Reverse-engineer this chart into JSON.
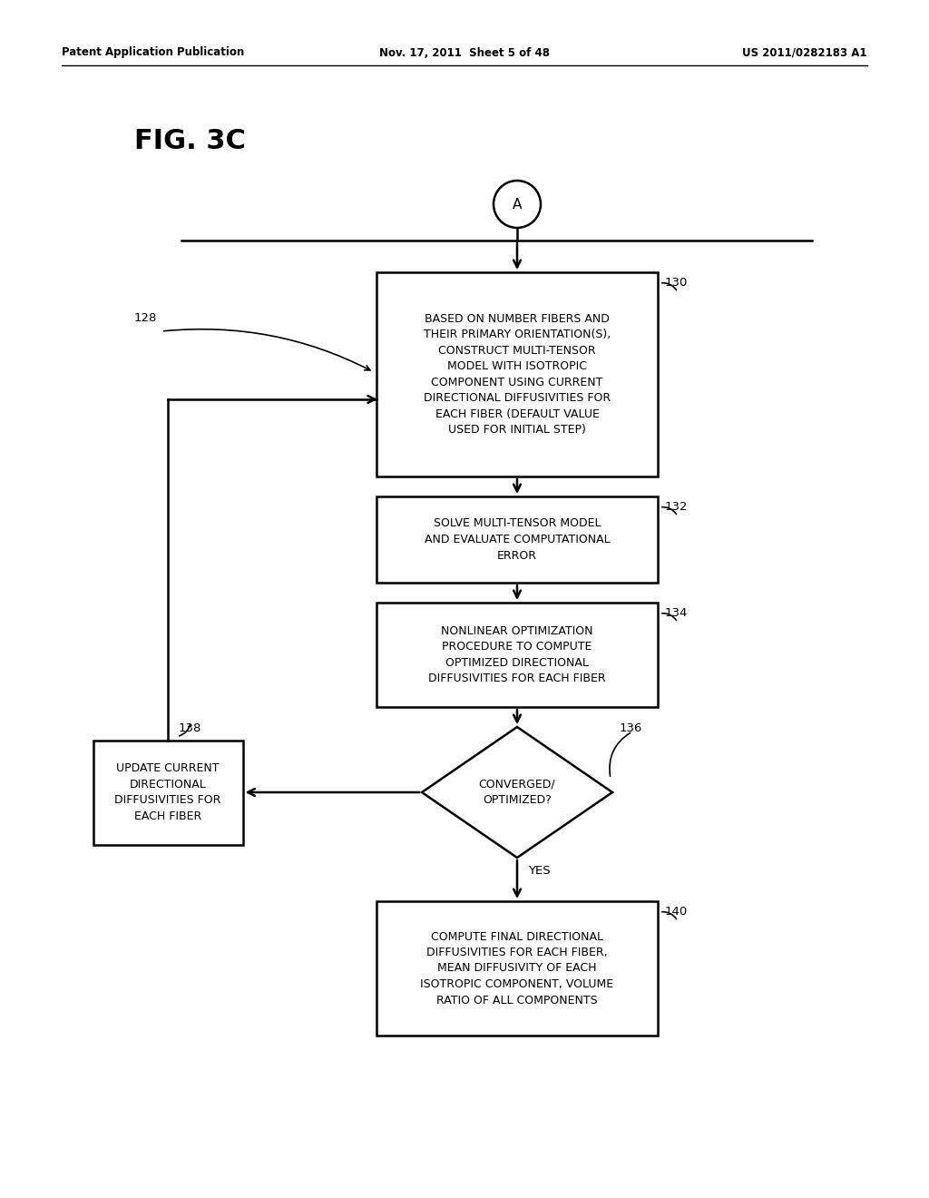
{
  "bg_color": "#ffffff",
  "header_left": "Patent Application Publication",
  "header_center": "Nov. 17, 2011  Sheet 5 of 48",
  "header_right": "US 2011/0282183 A1",
  "fig_label": "FIG. 3C",
  "circle_label": "A",
  "label_128": "128",
  "label_130": "130",
  "label_132": "132",
  "label_134": "134",
  "label_136": "136",
  "label_138": "138",
  "label_140": "140",
  "box130_text": "BASED ON NUMBER FIBERS AND\nTHEIR PRIMARY ORIENTATION(S),\nCONSTRUCT MULTI-TENSOR\nMODEL WITH ISOTROPIC\nCOMPONENT USING CURRENT\nDIRECTIONAL DIFFUSIVITIES FOR\nEACH FIBER (DEFAULT VALUE\nUSED FOR INITIAL STEP)",
  "box132_text": "SOLVE MULTI-TENSOR MODEL\nAND EVALUATE COMPUTATIONAL\nERROR",
  "box134_text": "NONLINEAR OPTIMIZATION\nPROCEDURE TO COMPUTE\nOPTIMIZED DIRECTIONAL\nDIFFUSIVITIES FOR EACH FIBER",
  "diamond136_text": "CONVERGED/\nOPTIMIZED?",
  "box138_text": "UPDATE CURRENT\nDIRECTIONAL\nDIFFUSIVITIES FOR\nEACH FIBER",
  "box140_text": "COMPUTE FINAL DIRECTIONAL\nDIFFUSIVITIES FOR EACH FIBER,\nMEAN DIFFUSIVITY OF EACH\nISOTROPIC COMPONENT, VOLUME\nRATIO OF ALL COMPONENTS",
  "yes_label": "YES",
  "no_label": ""
}
